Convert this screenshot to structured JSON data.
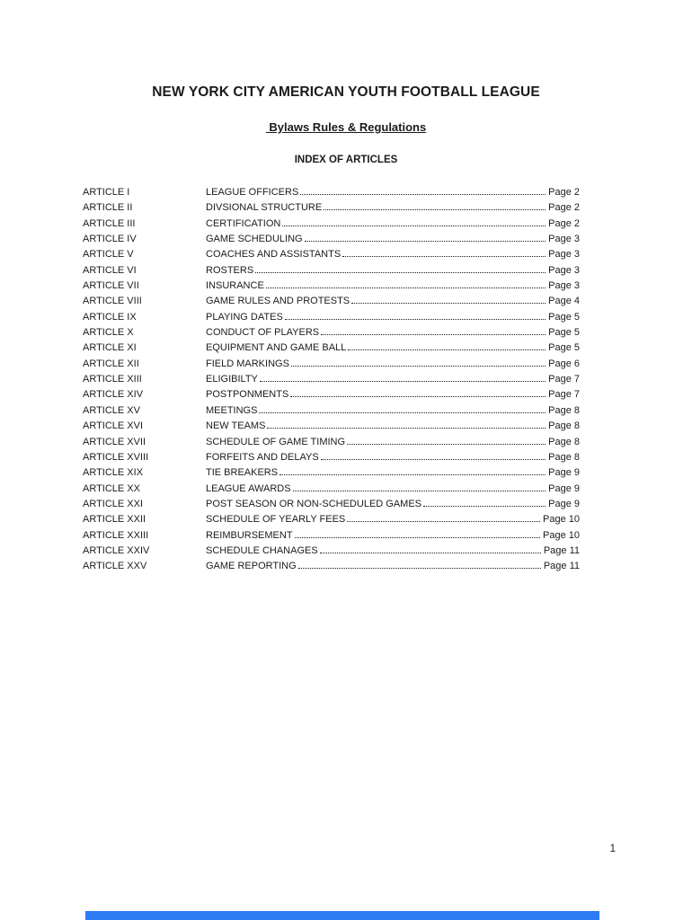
{
  "document": {
    "title": "NEW YORK CITY AMERICAN YOUTH FOOTBALL LEAGUE",
    "subtitle": " Bylaws Rules & Regulations",
    "section_heading": "INDEX OF ARTICLES",
    "page_number": "1"
  },
  "toc": {
    "items": [
      {
        "article": "ARTICLE I",
        "title": "LEAGUE OFFICERS",
        "page": "Page 2"
      },
      {
        "article": "ARTICLE II",
        "title": "DIVSIONAL STRUCTURE",
        "page": "Page 2"
      },
      {
        "article": "ARTICLE III",
        "title": "CERTIFICATION",
        "page": "Page 2"
      },
      {
        "article": "ARTICLE IV",
        "title": "GAME SCHEDULING",
        "page": "Page 3"
      },
      {
        "article": "ARTICLE V",
        "title": "COACHES AND ASSISTANTS",
        "page": "Page 3"
      },
      {
        "article": "ARTICLE VI",
        "title": "ROSTERS",
        "page": "Page 3"
      },
      {
        "article": "ARTICLE VII",
        "title": "INSURANCE",
        "page": "Page 3"
      },
      {
        "article": "ARTICLE VIII",
        "title": "GAME RULES AND PROTESTS",
        "page": "Page 4"
      },
      {
        "article": "ARTICLE IX",
        "title": "PLAYING DATES",
        "page": "Page 5"
      },
      {
        "article": "ARTICLE X",
        "title": "CONDUCT OF PLAYERS",
        "page": "Page 5"
      },
      {
        "article": "ARTICLE XI",
        "title": "EQUIPMENT AND GAME BALL",
        "page": "Page 5"
      },
      {
        "article": "ARTICLE XII",
        "title": "FIELD MARKINGS",
        "page": "Page 6"
      },
      {
        "article": "ARTICLE XIII",
        "title": "ELIGIBILTY",
        "page": "Page 7"
      },
      {
        "article": "ARTICLE XIV",
        "title": "POSTPONMENTS",
        "page": "Page 7"
      },
      {
        "article": "ARTICLE XV",
        "title": "MEETINGS",
        "page": "Page 8"
      },
      {
        "article": "ARTICLE XVI",
        "title": "NEW TEAMS",
        "page": "Page 8"
      },
      {
        "article": "ARTICLE XVII",
        "title": "SCHEDULE OF GAME TIMING",
        "page": "Page 8"
      },
      {
        "article": "ARTICLE XVIII",
        "title": "FORFEITS AND DELAYS",
        "page": "Page 8"
      },
      {
        "article": "ARTICLE XIX",
        "title": "TIE BREAKERS",
        "page": "Page 9"
      },
      {
        "article": "ARTICLE XX",
        "title": "LEAGUE AWARDS",
        "page": "Page 9"
      },
      {
        "article": "ARTICLE XXI",
        "title": "POST SEASON OR NON-SCHEDULED GAMES",
        "page": "Page 9"
      },
      {
        "article": "ARTICLE XXII",
        "title": "SCHEDULE OF YEARLY FEES",
        "page": "Page 10"
      },
      {
        "article": "ARTICLE XXIII",
        "title": "REIMBURSEMENT",
        "page": "Page 10"
      },
      {
        "article": "ARTICLE XXIV",
        "title": "SCHEDULE CHANAGES",
        "page": "Page 11"
      },
      {
        "article": "ARTICLE XXV",
        "title": "GAME REPORTING",
        "page": "Page 11"
      }
    ]
  },
  "colors": {
    "text": "#1b1b1b",
    "bottom_bar_blue": "#2e7cf3"
  }
}
